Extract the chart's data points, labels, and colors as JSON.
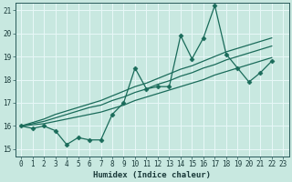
{
  "title": "",
  "xlabel": "Humidex (Indice chaleur)",
  "ylabel": "",
  "xlim": [
    -0.5,
    23.5
  ],
  "ylim": [
    14.7,
    21.3
  ],
  "yticks": [
    15,
    16,
    17,
    18,
    19,
    20,
    21
  ],
  "xticks": [
    0,
    1,
    2,
    3,
    4,
    5,
    6,
    7,
    8,
    9,
    10,
    11,
    12,
    13,
    14,
    15,
    16,
    17,
    18,
    19,
    20,
    21,
    22,
    23
  ],
  "bg_color": "#c8e8e0",
  "grid_color": "#e8f8f8",
  "line_color": "#1a6b5a",
  "series_main": [
    16.0,
    15.9,
    16.0,
    15.8,
    15.2,
    15.5,
    15.4,
    15.4,
    16.5,
    17.0,
    18.5,
    17.6,
    17.7,
    17.7,
    19.9,
    18.9,
    19.8,
    21.2,
    19.1,
    18.5,
    17.9,
    18.3,
    18.8
  ],
  "series_trend1": [
    16.0,
    16.05,
    16.1,
    16.2,
    16.3,
    16.4,
    16.5,
    16.6,
    16.75,
    16.9,
    17.1,
    17.25,
    17.4,
    17.55,
    17.7,
    17.85,
    18.0,
    18.2,
    18.35,
    18.5,
    18.65,
    18.8,
    18.95
  ],
  "series_trend2": [
    16.0,
    16.1,
    16.2,
    16.35,
    16.5,
    16.65,
    16.8,
    16.9,
    17.1,
    17.25,
    17.45,
    17.6,
    17.8,
    17.95,
    18.15,
    18.3,
    18.5,
    18.65,
    18.85,
    19.0,
    19.15,
    19.3,
    19.45
  ],
  "series_trend3": [
    16.0,
    16.15,
    16.3,
    16.5,
    16.65,
    16.8,
    16.95,
    17.1,
    17.3,
    17.5,
    17.7,
    17.85,
    18.05,
    18.25,
    18.45,
    18.6,
    18.8,
    19.0,
    19.2,
    19.35,
    19.5,
    19.65,
    19.8
  ],
  "marker": "D",
  "markersize": 2.5,
  "linewidth": 0.9,
  "tick_fontsize": 5.5,
  "xlabel_fontsize": 6.5
}
